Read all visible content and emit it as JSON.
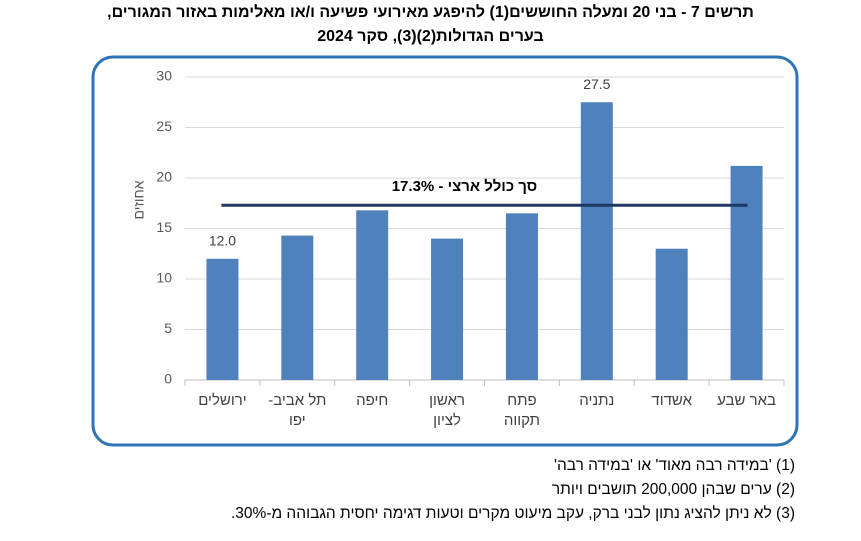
{
  "chart_data": {
    "type": "bar",
    "title_lines": [
      "תרשים 7 - בני 20 ומעלה החוששים(1) להיפגע מאירועי פשיעה ו/או מאלימות באזור המגורים,",
      "בערים הגדולות(2)(3), סקר 2024"
    ],
    "y_label": "אחוזים",
    "categories": [
      [
        "ירושלים"
      ],
      [
        "תל אביב-",
        "יפו"
      ],
      [
        "חיפה"
      ],
      [
        "ראשון",
        "לציון"
      ],
      [
        "פתח",
        "תקווה"
      ],
      [
        "נתניה"
      ],
      [
        "אשדוד"
      ],
      [
        "באר שבע"
      ]
    ],
    "values": [
      12.0,
      14.3,
      16.8,
      14.0,
      16.5,
      27.5,
      13.0,
      21.2
    ],
    "value_labels": [
      "12.0",
      null,
      null,
      null,
      null,
      "27.5",
      null,
      null
    ],
    "color": "#4f81bd",
    "ylim": [
      0,
      30
    ],
    "yticks": [
      0,
      5,
      10,
      15,
      20,
      25,
      30
    ],
    "grid": true,
    "reference_line": {
      "value": 17.3,
      "label": "סך כולל ארצי - 17.3%",
      "color": "#1f3864"
    },
    "footnotes": [
      "(1) 'במידה רבה מאוד' או 'במידה רבה'",
      "(2) ערים שבהן 200,000 תושבים ויותר",
      "(3) לא ניתן להציג נתון לבני ברק, עקב מיעוט מקרים וטעות דגימה יחסית הגבוהה מ-30%."
    ]
  }
}
